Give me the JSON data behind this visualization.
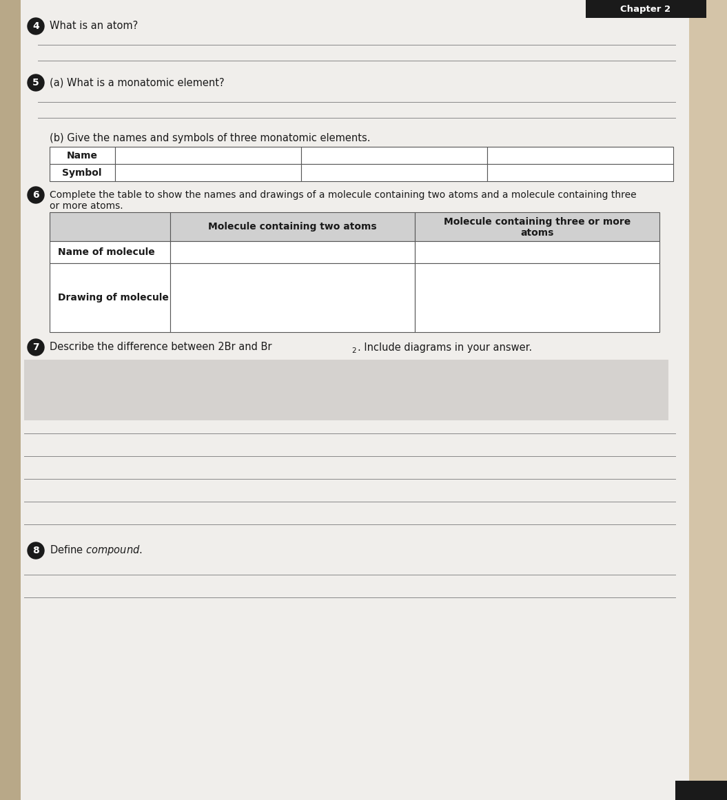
{
  "chapter_label": "Chapter 2",
  "spine_color": "#c8b89a",
  "page_bg": "#f0eeeb",
  "right_bg": "#d4c4a8",
  "paper_white": "#f5f4f1",
  "q4_num": "4",
  "q4_text": "What is an atom?",
  "q5_num": "5",
  "q5a_text": "(a) What is a monatomic element?",
  "q5b_text": "(b) Give the names and symbols of three monatomic elements.",
  "q6_num": "6",
  "q6_line1": "Complete the table to show the names and drawings of a molecule containing two atoms and a molecule containing three",
  "q6_line2": "or more atoms.",
  "table2_col2_header": "Molecule containing two atoms",
  "table2_col3_header_line1": "Molecule containing three or more",
  "table2_col3_header_line2": "atoms",
  "table2_row1_label": "Name of molecule",
  "table2_row2_label": "Drawing of molecule",
  "q7_num": "7",
  "q7_text_part1": "Describe the difference between 2Br and Br",
  "q7_text_sub": "2",
  "q7_text_part2": ". Include diagrams in your answer.",
  "q8_num": "8",
  "q8_text": "Define ",
  "q8_italic": "compound.",
  "answer_line_color": "#888888",
  "table_border_color": "#555555",
  "text_color": "#1a1a1a",
  "num_circle_color": "#1a1a1a",
  "header_bg": "#d0d0d0",
  "gray_blur_color": "#c0bcb8",
  "chapter_bg": "#1a1a1a"
}
